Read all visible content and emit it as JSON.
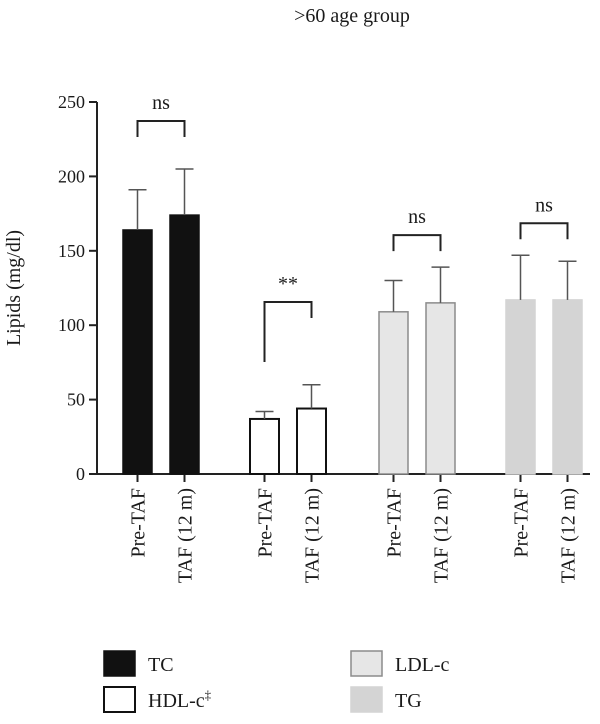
{
  "chart_data": {
    "type": "bar",
    "title": ">60 age group",
    "ylabel": "Lipids (mg/dl)",
    "xlabel": "",
    "ylim": [
      0,
      250
    ],
    "yticks": [
      0,
      50,
      100,
      150,
      200,
      250
    ],
    "categories": [
      "Pre-TAF",
      "TAF (12 m)"
    ],
    "series": [
      {
        "name": "TC",
        "values": [
          164,
          174
        ],
        "errors": [
          27,
          31
        ],
        "fill": "#111111",
        "stroke": "#111111",
        "significance": "ns"
      },
      {
        "name": "HDL-c‡",
        "values": [
          37,
          44
        ],
        "errors": [
          5,
          16
        ],
        "fill": "#ffffff",
        "stroke": "#111111",
        "significance": "**"
      },
      {
        "name": "LDL-c",
        "values": [
          109,
          115
        ],
        "errors": [
          21,
          24
        ],
        "fill": "#e6e6e6",
        "stroke": "#8c8c8c",
        "significance": "ns"
      },
      {
        "name": "TG",
        "values": [
          117,
          117
        ],
        "errors": [
          30,
          26
        ],
        "fill": "#d4d4d4",
        "stroke": "#d4d4d4",
        "significance": "ns"
      }
    ],
    "legend_position": "bottom",
    "grid": false
  }
}
